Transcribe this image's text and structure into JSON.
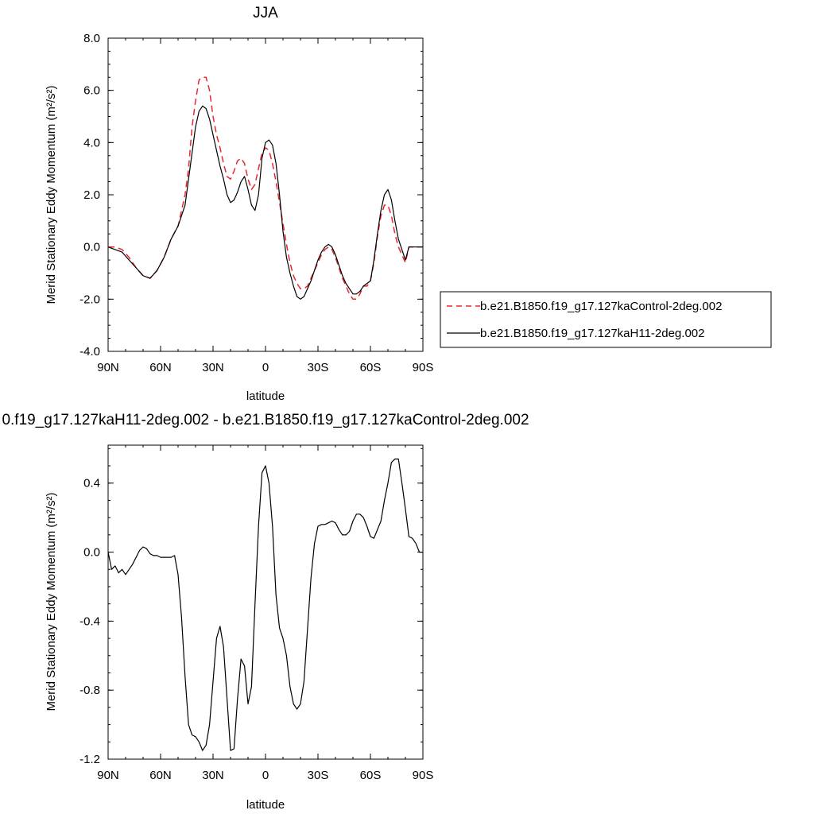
{
  "chart_data": [
    {
      "type": "line",
      "title": "JJA",
      "xlabel": "latitude",
      "ylabel": "Merid Stationary Eddy Momentum (m²/s²)",
      "xlim": [
        90,
        -90
      ],
      "ylim": [
        -4.0,
        8.0
      ],
      "xticks": [
        90,
        60,
        30,
        0,
        -30,
        -60,
        -90
      ],
      "xtick_labels": [
        "90N",
        "60N",
        "30N",
        "0",
        "30S",
        "60S",
        "90S"
      ],
      "yticks": [
        -4.0,
        -2.0,
        0.0,
        2.0,
        4.0,
        6.0,
        8.0
      ],
      "ytick_labels": [
        "-4.0",
        "-2.0",
        "0.0",
        "2.0",
        "4.0",
        "6.0",
        "8.0"
      ],
      "legend_position": "right",
      "series": [
        {
          "name": "b.e21.B1850.f19_g17.127kaControl-2deg.002",
          "color": "#e8282b",
          "dash": "dashed",
          "x": [
            90,
            86,
            82,
            78,
            74,
            70,
            66,
            62,
            58,
            54,
            50,
            46,
            44,
            42,
            40,
            38,
            36,
            34,
            32,
            30,
            28,
            26,
            24,
            22,
            20,
            18,
            16,
            14,
            12,
            10,
            8,
            6,
            4,
            2,
            0,
            -2,
            -4,
            -6,
            -8,
            -10,
            -12,
            -14,
            -16,
            -18,
            -20,
            -22,
            -24,
            -26,
            -28,
            -30,
            -32,
            -34,
            -36,
            -38,
            -40,
            -42,
            -44,
            -46,
            -48,
            -50,
            -52,
            -54,
            -56,
            -58,
            -60,
            -62,
            -64,
            -66,
            -68,
            -70,
            -72,
            -74,
            -76,
            -78,
            -80,
            -82,
            -84,
            -86,
            -88,
            -90
          ],
          "y": [
            0.0,
            0.0,
            -0.1,
            -0.4,
            -0.8,
            -1.1,
            -1.2,
            -0.9,
            -0.4,
            0.3,
            0.8,
            2.0,
            3.0,
            4.6,
            5.6,
            6.4,
            6.5,
            6.5,
            6.0,
            5.0,
            4.3,
            3.8,
            3.2,
            2.7,
            2.6,
            2.9,
            3.3,
            3.4,
            3.2,
            2.6,
            2.2,
            2.4,
            3.0,
            3.6,
            3.8,
            3.7,
            3.2,
            2.5,
            1.7,
            0.9,
            0.1,
            -0.6,
            -1.1,
            -1.4,
            -1.6,
            -1.6,
            -1.5,
            -1.2,
            -0.9,
            -0.6,
            -0.3,
            -0.1,
            0.0,
            -0.1,
            -0.4,
            -0.8,
            -1.2,
            -1.5,
            -1.8,
            -2.0,
            -2.0,
            -1.8,
            -1.5,
            -1.5,
            -1.3,
            -0.6,
            0.4,
            1.2,
            1.6,
            1.6,
            1.2,
            0.5,
            0.0,
            -0.3,
            -0.6,
            0.0,
            0.0,
            0.0,
            0.0,
            0.0
          ]
        },
        {
          "name": "b.e21.B1850.f19_g17.127kaH11-2deg.002",
          "color": "#000000",
          "dash": "solid",
          "x": [
            90,
            86,
            82,
            78,
            74,
            70,
            66,
            62,
            58,
            54,
            50,
            46,
            44,
            42,
            40,
            38,
            36,
            34,
            32,
            30,
            28,
            26,
            24,
            22,
            20,
            18,
            16,
            14,
            12,
            10,
            8,
            6,
            4,
            2,
            0,
            -2,
            -4,
            -6,
            -8,
            -10,
            -12,
            -14,
            -16,
            -18,
            -20,
            -22,
            -24,
            -26,
            -28,
            -30,
            -32,
            -34,
            -36,
            -38,
            -40,
            -42,
            -44,
            -46,
            -48,
            -50,
            -52,
            -54,
            -56,
            -58,
            -60,
            -62,
            -64,
            -66,
            -68,
            -70,
            -72,
            -74,
            -76,
            -78,
            -80,
            -82,
            -84,
            -86,
            -88,
            -90
          ],
          "y": [
            0.0,
            -0.1,
            -0.2,
            -0.5,
            -0.8,
            -1.1,
            -1.2,
            -0.9,
            -0.4,
            0.3,
            0.8,
            1.6,
            2.6,
            3.6,
            4.6,
            5.2,
            5.4,
            5.3,
            4.9,
            4.3,
            3.7,
            3.1,
            2.6,
            2.0,
            1.7,
            1.8,
            2.1,
            2.5,
            2.7,
            2.2,
            1.6,
            1.4,
            2.0,
            3.4,
            4.0,
            4.1,
            3.9,
            3.2,
            2.0,
            0.6,
            -0.4,
            -1.0,
            -1.5,
            -1.9,
            -2.0,
            -1.9,
            -1.6,
            -1.3,
            -0.9,
            -0.5,
            -0.2,
            0.0,
            0.1,
            0.0,
            -0.3,
            -0.7,
            -1.1,
            -1.4,
            -1.6,
            -1.8,
            -1.8,
            -1.7,
            -1.5,
            -1.4,
            -1.3,
            -0.5,
            0.5,
            1.4,
            2.0,
            2.2,
            1.8,
            1.0,
            0.3,
            -0.1,
            -0.5,
            0.0,
            0.0,
            0.0,
            0.0,
            0.0
          ]
        }
      ]
    },
    {
      "type": "line",
      "title": "0.f19_g17.127kaH11-2deg.002 - b.e21.B1850.f19_g17.127kaControl-2deg.002",
      "xlabel": "latitude",
      "ylabel": "Merid Stationary Eddy Momentum (m²/s²)",
      "xlim": [
        90,
        -90
      ],
      "ylim": [
        -1.2,
        0.62
      ],
      "xticks": [
        90,
        60,
        30,
        0,
        -30,
        -60,
        -90
      ],
      "xtick_labels": [
        "90N",
        "60N",
        "30N",
        "0",
        "30S",
        "60S",
        "90S"
      ],
      "yticks": [
        -1.2,
        -0.8,
        -0.4,
        0.0,
        0.4
      ],
      "ytick_labels": [
        "-1.2",
        "-0.8",
        "-0.4",
        "0.0",
        "0.4"
      ],
      "series": [
        {
          "color": "#000000",
          "dash": "solid",
          "x": [
            90,
            88,
            86,
            84,
            82,
            80,
            78,
            76,
            74,
            72,
            70,
            68,
            66,
            64,
            62,
            60,
            58,
            56,
            54,
            52,
            50,
            48,
            46,
            44,
            42,
            40,
            38,
            36,
            34,
            32,
            30,
            28,
            26,
            24,
            22,
            20,
            18,
            16,
            14,
            12,
            10,
            8,
            6,
            4,
            2,
            0,
            -2,
            -4,
            -6,
            -8,
            -10,
            -12,
            -14,
            -16,
            -18,
            -20,
            -22,
            -24,
            -26,
            -28,
            -30,
            -32,
            -34,
            -36,
            -38,
            -40,
            -42,
            -44,
            -46,
            -48,
            -50,
            -52,
            -54,
            -56,
            -58,
            -60,
            -62,
            -64,
            -66,
            -68,
            -70,
            -72,
            -74,
            -76,
            -78,
            -80,
            -82,
            -84,
            -86,
            -88,
            -90
          ],
          "y": [
            0.0,
            -0.1,
            -0.08,
            -0.12,
            -0.1,
            -0.13,
            -0.1,
            -0.07,
            -0.03,
            0.01,
            0.03,
            0.02,
            -0.01,
            -0.02,
            -0.02,
            -0.03,
            -0.03,
            -0.03,
            -0.03,
            -0.02,
            -0.13,
            -0.38,
            -0.72,
            -1.0,
            -1.06,
            -1.07,
            -1.1,
            -1.15,
            -1.12,
            -1.0,
            -0.75,
            -0.5,
            -0.43,
            -0.55,
            -0.85,
            -1.15,
            -1.14,
            -0.85,
            -0.62,
            -0.66,
            -0.88,
            -0.78,
            -0.3,
            0.15,
            0.46,
            0.5,
            0.4,
            0.15,
            -0.25,
            -0.44,
            -0.5,
            -0.6,
            -0.78,
            -0.88,
            -0.91,
            -0.88,
            -0.75,
            -0.45,
            -0.15,
            0.05,
            0.15,
            0.16,
            0.16,
            0.17,
            0.18,
            0.17,
            0.13,
            0.1,
            0.1,
            0.12,
            0.18,
            0.22,
            0.22,
            0.2,
            0.15,
            0.09,
            0.08,
            0.13,
            0.18,
            0.3,
            0.4,
            0.52,
            0.54,
            0.54,
            0.4,
            0.25,
            0.09,
            0.08,
            0.05,
            0.0,
            0.0
          ]
        }
      ]
    }
  ]
}
